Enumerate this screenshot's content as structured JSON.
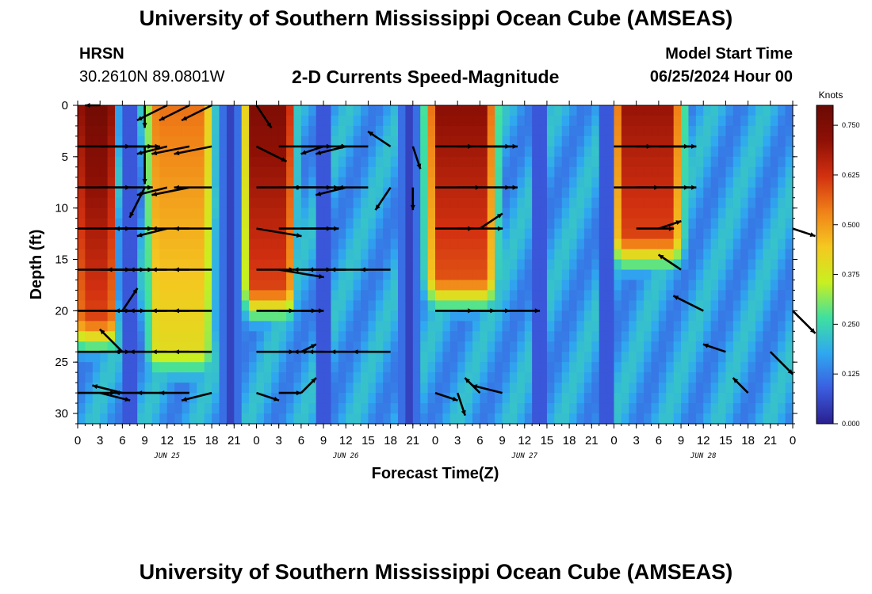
{
  "title": "University of Southern Mississippi Ocean Cube (AMSEAS)",
  "station": {
    "code": "HRSN",
    "coords": "30.2610N  89.0801W"
  },
  "subtitle": "2-D Currents Speed-Magnitude",
  "model_start": {
    "label": "Model Start Time",
    "value": "06/25/2024 Hour 00"
  },
  "footer_title": "University of Southern Mississippi Ocean Cube (AMSEAS)",
  "colors": {
    "arrow": "#000000",
    "colormap": [
      "#2a1f8f",
      "#3b5de0",
      "#2fa8f0",
      "#3fe0a0",
      "#c8f020",
      "#f5c820",
      "#f08018",
      "#d23010",
      "#8e1005",
      "#6a0a04"
    ]
  },
  "chart_data": {
    "type": "heatmap",
    "title": "2-D Currents Speed-Magnitude",
    "xlabel": "Forecast Time(Z)",
    "ylabel": "Depth (ft)",
    "colorbar_label": "Knots",
    "colorbar_ticks": [
      "0.750",
      "0.625",
      "0.500",
      "0.375",
      "0.250",
      "0.125",
      "0.000"
    ],
    "colorbar_range": [
      0,
      0.8
    ],
    "xlim_hours": [
      0,
      96
    ],
    "ylim": [
      0,
      31
    ],
    "y_ticks": [
      "0",
      "5",
      "10",
      "15",
      "20",
      "25",
      "30"
    ],
    "x_tick_labels": [
      "0",
      "3",
      "6",
      "9",
      "12",
      "15",
      "18",
      "21",
      "0",
      "3",
      "6",
      "9",
      "12",
      "15",
      "18",
      "21",
      "0",
      "3",
      "6",
      "9",
      "12",
      "15",
      "18",
      "21",
      "0",
      "3",
      "6",
      "9",
      "12",
      "15",
      "18",
      "21",
      "0"
    ],
    "day_labels": [
      {
        "label": "JUN 25",
        "hour": 12
      },
      {
        "label": "JUN 26",
        "hour": 36
      },
      {
        "label": "JUN 27",
        "hour": 60
      },
      {
        "label": "JUN 28",
        "hour": 84
      }
    ],
    "arrow_depths": [
      0,
      4,
      8,
      12,
      16,
      20,
      24,
      28
    ],
    "speed_peaks": [
      {
        "hour_start": 0,
        "hour_end": 5,
        "max_depth": 21,
        "speed": 0.78
      },
      {
        "hour_start": 9.5,
        "hour_end": 18,
        "max_depth": 24,
        "speed": 0.55
      },
      {
        "hour_start": 22.5,
        "hour_end": 29,
        "max_depth": 18,
        "speed": 0.75
      },
      {
        "hour_start": 47,
        "hour_end": 56,
        "max_depth": 17,
        "speed": 0.72
      },
      {
        "hour_start": 72,
        "hour_end": 81,
        "max_depth": 13,
        "speed": 0.7
      }
    ],
    "slack_hours": [
      7,
      20.5,
      33,
      44.5,
      62,
      71
    ],
    "arrows": [
      {
        "hour": 3,
        "depth": 0,
        "u": -0.2,
        "v": 0.0
      },
      {
        "hour": 9,
        "depth": 0,
        "u": 0.0,
        "v": 0.3
      },
      {
        "hour": 12,
        "depth": 0,
        "u": -0.4,
        "v": 0.2
      },
      {
        "hour": 15,
        "depth": 0,
        "u": -0.4,
        "v": 0.2
      },
      {
        "hour": 18,
        "depth": 0,
        "u": -0.4,
        "v": 0.2
      },
      {
        "hour": 0,
        "depth": 4,
        "u": 0.7,
        "v": 0.0
      },
      {
        "hour": 3,
        "depth": 4,
        "u": 0.7,
        "v": 0.0
      },
      {
        "hour": 6,
        "depth": 4,
        "u": 0.5,
        "v": 0.0
      },
      {
        "hour": 9,
        "depth": 4,
        "u": 0.0,
        "v": 0.5
      },
      {
        "hour": 12,
        "depth": 4,
        "u": -0.4,
        "v": 0.1
      },
      {
        "hour": 15,
        "depth": 4,
        "u": -0.5,
        "v": 0.1
      },
      {
        "hour": 18,
        "depth": 4,
        "u": -0.5,
        "v": 0.1
      },
      {
        "hour": 0,
        "depth": 8,
        "u": 0.7,
        "v": 0.0
      },
      {
        "hour": 3,
        "depth": 8,
        "u": 0.7,
        "v": 0.0
      },
      {
        "hour": 6,
        "depth": 8,
        "u": 0.4,
        "v": 0.0
      },
      {
        "hour": 9,
        "depth": 8,
        "u": -0.2,
        "v": 0.4
      },
      {
        "hour": 12,
        "depth": 8,
        "u": -0.4,
        "v": 0.1
      },
      {
        "hour": 15,
        "depth": 8,
        "u": -0.5,
        "v": 0.1
      },
      {
        "hour": 18,
        "depth": 8,
        "u": -0.5,
        "v": 0.0
      },
      {
        "hour": 0,
        "depth": 12,
        "u": 0.7,
        "v": 0.0
      },
      {
        "hour": 3,
        "depth": 12,
        "u": 0.7,
        "v": 0.0
      },
      {
        "hour": 6,
        "depth": 12,
        "u": 0.4,
        "v": 0.0
      },
      {
        "hour": 9,
        "depth": 12,
        "u": -0.4,
        "v": 0.0
      },
      {
        "hour": 12,
        "depth": 12,
        "u": -0.4,
        "v": 0.1
      },
      {
        "hour": 15,
        "depth": 12,
        "u": -0.5,
        "v": 0.0
      },
      {
        "hour": 18,
        "depth": 12,
        "u": -0.5,
        "v": 0.0
      },
      {
        "hour": 0,
        "depth": 16,
        "u": 0.7,
        "v": 0.0
      },
      {
        "hour": 3,
        "depth": 16,
        "u": 0.7,
        "v": 0.0
      },
      {
        "hour": 6,
        "depth": 16,
        "u": 0.3,
        "v": 0.0
      },
      {
        "hour": 9,
        "depth": 16,
        "u": -0.5,
        "v": 0.0
      },
      {
        "hour": 12,
        "depth": 16,
        "u": -0.5,
        "v": 0.0
      },
      {
        "hour": 15,
        "depth": 16,
        "u": -0.5,
        "v": 0.0
      },
      {
        "hour": 18,
        "depth": 16,
        "u": -0.5,
        "v": 0.0
      },
      {
        "hour": 0,
        "depth": 20,
        "u": 0.7,
        "v": 0.0
      },
      {
        "hour": 3,
        "depth": 20,
        "u": 0.6,
        "v": 0.0
      },
      {
        "hour": 6,
        "depth": 20,
        "u": 0.2,
        "v": -0.3
      },
      {
        "hour": 9,
        "depth": 20,
        "u": -0.4,
        "v": 0.0
      },
      {
        "hour": 12,
        "depth": 20,
        "u": -0.5,
        "v": 0.0
      },
      {
        "hour": 15,
        "depth": 20,
        "u": -0.5,
        "v": 0.0
      },
      {
        "hour": 18,
        "depth": 20,
        "u": -0.5,
        "v": 0.0
      },
      {
        "hour": 0,
        "depth": 24,
        "u": 0.6,
        "v": 0.0
      },
      {
        "hour": 3,
        "depth": 24,
        "u": 0.4,
        "v": 0.0
      },
      {
        "hour": 6,
        "depth": 24,
        "u": -0.3,
        "v": -0.3
      },
      {
        "hour": 9,
        "depth": 24,
        "u": -0.4,
        "v": 0.0
      },
      {
        "hour": 12,
        "depth": 24,
        "u": -0.5,
        "v": 0.0
      },
      {
        "hour": 15,
        "depth": 24,
        "u": -0.5,
        "v": 0.0
      },
      {
        "hour": 18,
        "depth": 24,
        "u": -0.5,
        "v": 0.0
      },
      {
        "hour": 0,
        "depth": 28,
        "u": 0.5,
        "v": 0.0
      },
      {
        "hour": 3,
        "depth": 28,
        "u": 0.4,
        "v": 0.1
      },
      {
        "hour": 6,
        "depth": 28,
        "u": -0.4,
        "v": -0.1
      },
      {
        "hour": 9,
        "depth": 28,
        "u": -0.4,
        "v": 0.0
      },
      {
        "hour": 12,
        "depth": 28,
        "u": -0.4,
        "v": 0.0
      },
      {
        "hour": 15,
        "depth": 28,
        "u": -0.4,
        "v": 0.0
      },
      {
        "hour": 18,
        "depth": 28,
        "u": -0.4,
        "v": 0.1
      },
      {
        "hour": 21,
        "depth": 4,
        "u": 0.0,
        "v": 0.0
      },
      {
        "hour": 24,
        "depth": 4,
        "u": 0.4,
        "v": 0.2
      },
      {
        "hour": 27,
        "depth": 4,
        "u": 0.7,
        "v": 0.0
      },
      {
        "hour": 30,
        "depth": 4,
        "u": 0.6,
        "v": 0.0
      },
      {
        "hour": 24,
        "depth": 0,
        "u": 0.2,
        "v": 0.3
      },
      {
        "hour": 24,
        "depth": 8,
        "u": 0.6,
        "v": 0.0
      },
      {
        "hour": 27,
        "depth": 8,
        "u": 0.7,
        "v": 0.0
      },
      {
        "hour": 30,
        "depth": 8,
        "u": 0.5,
        "v": 0.0
      },
      {
        "hour": 24,
        "depth": 12,
        "u": 0.6,
        "v": 0.1
      },
      {
        "hour": 27,
        "depth": 12,
        "u": 0.7,
        "v": 0.0
      },
      {
        "hour": 30,
        "depth": 12,
        "u": 0.5,
        "v": 0.0
      },
      {
        "hour": 24,
        "depth": 16,
        "u": 0.5,
        "v": 0.0
      },
      {
        "hour": 27,
        "depth": 16,
        "u": 0.6,
        "v": 0.1
      },
      {
        "hour": 30,
        "depth": 16,
        "u": 0.4,
        "v": 0.0
      },
      {
        "hour": 24,
        "depth": 20,
        "u": 0.5,
        "v": 0.0
      },
      {
        "hour": 27,
        "depth": 20,
        "u": 0.5,
        "v": 0.0
      },
      {
        "hour": 30,
        "depth": 20,
        "u": 0.3,
        "v": 0.0
      },
      {
        "hour": 24,
        "depth": 24,
        "u": 0.5,
        "v": 0.0
      },
      {
        "hour": 27,
        "depth": 24,
        "u": 0.4,
        "v": 0.0
      },
      {
        "hour": 30,
        "depth": 24,
        "u": 0.2,
        "v": -0.1
      },
      {
        "hour": 24,
        "depth": 28,
        "u": 0.3,
        "v": 0.1
      },
      {
        "hour": 27,
        "depth": 28,
        "u": 0.3,
        "v": 0.0
      },
      {
        "hour": 30,
        "depth": 28,
        "u": 0.2,
        "v": -0.2
      },
      {
        "hour": 33,
        "depth": 4,
        "u": -0.3,
        "v": 0.1
      },
      {
        "hour": 36,
        "depth": 4,
        "u": -0.4,
        "v": 0.1
      },
      {
        "hour": 39,
        "depth": 4,
        "u": -0.4,
        "v": 0.0
      },
      {
        "hour": 42,
        "depth": 4,
        "u": -0.3,
        "v": -0.2
      },
      {
        "hour": 45,
        "depth": 4,
        "u": 0.1,
        "v": 0.3
      },
      {
        "hour": 33,
        "depth": 8,
        "u": -0.4,
        "v": 0.0
      },
      {
        "hour": 36,
        "depth": 8,
        "u": -0.4,
        "v": 0.1
      },
      {
        "hour": 39,
        "depth": 8,
        "u": -0.4,
        "v": 0.0
      },
      {
        "hour": 42,
        "depth": 8,
        "u": -0.2,
        "v": 0.3
      },
      {
        "hour": 45,
        "depth": 8,
        "u": 0.0,
        "v": 0.3
      },
      {
        "hour": 33,
        "depth": 16,
        "u": -0.4,
        "v": 0.0
      },
      {
        "hour": 36,
        "depth": 16,
        "u": -0.5,
        "v": 0.0
      },
      {
        "hour": 39,
        "depth": 16,
        "u": -0.5,
        "v": 0.0
      },
      {
        "hour": 42,
        "depth": 16,
        "u": -0.4,
        "v": 0.0
      },
      {
        "hour": 33,
        "depth": 24,
        "u": -0.4,
        "v": 0.0
      },
      {
        "hour": 36,
        "depth": 24,
        "u": -0.5,
        "v": 0.0
      },
      {
        "hour": 39,
        "depth": 24,
        "u": -0.5,
        "v": 0.0
      },
      {
        "hour": 42,
        "depth": 24,
        "u": -0.5,
        "v": 0.0
      },
      {
        "hour": 48,
        "depth": 4,
        "u": 0.5,
        "v": 0.0
      },
      {
        "hour": 51,
        "depth": 4,
        "u": 0.7,
        "v": 0.0
      },
      {
        "hour": 54,
        "depth": 4,
        "u": 0.5,
        "v": 0.0
      },
      {
        "hour": 48,
        "depth": 8,
        "u": 0.6,
        "v": 0.0
      },
      {
        "hour": 51,
        "depth": 8,
        "u": 0.7,
        "v": 0.0
      },
      {
        "hour": 54,
        "depth": 8,
        "u": 0.5,
        "v": 0.0
      },
      {
        "hour": 48,
        "depth": 12,
        "u": 0.5,
        "v": 0.0
      },
      {
        "hour": 51,
        "depth": 12,
        "u": 0.6,
        "v": 0.0
      },
      {
        "hour": 54,
        "depth": 12,
        "u": 0.3,
        "v": -0.2
      },
      {
        "hour": 48,
        "depth": 20,
        "u": 0.5,
        "v": 0.0
      },
      {
        "hour": 51,
        "depth": 20,
        "u": 0.5,
        "v": 0.0
      },
      {
        "hour": 54,
        "depth": 20,
        "u": 0.4,
        "v": 0.0
      },
      {
        "hour": 57,
        "depth": 20,
        "u": 0.5,
        "v": 0.0
      },
      {
        "hour": 48,
        "depth": 28,
        "u": 0.3,
        "v": 0.1
      },
      {
        "hour": 51,
        "depth": 28,
        "u": 0.1,
        "v": 0.3
      },
      {
        "hour": 54,
        "depth": 28,
        "u": -0.2,
        "v": -0.2
      },
      {
        "hour": 57,
        "depth": 28,
        "u": -0.4,
        "v": -0.1
      },
      {
        "hour": 72,
        "depth": 4,
        "u": 0.5,
        "v": 0.0
      },
      {
        "hour": 75,
        "depth": 4,
        "u": 0.7,
        "v": 0.0
      },
      {
        "hour": 78,
        "depth": 4,
        "u": 0.5,
        "v": 0.0
      },
      {
        "hour": 72,
        "depth": 8,
        "u": 0.6,
        "v": 0.0
      },
      {
        "hour": 75,
        "depth": 8,
        "u": 0.7,
        "v": 0.0
      },
      {
        "hour": 78,
        "depth": 8,
        "u": 0.5,
        "v": 0.0
      },
      {
        "hour": 75,
        "depth": 12,
        "u": 0.5,
        "v": 0.0
      },
      {
        "hour": 78,
        "depth": 12,
        "u": 0.3,
        "v": -0.1
      },
      {
        "hour": 81,
        "depth": 16,
        "u": -0.3,
        "v": -0.2
      },
      {
        "hour": 84,
        "depth": 20,
        "u": -0.4,
        "v": -0.2
      },
      {
        "hour": 87,
        "depth": 24,
        "u": -0.3,
        "v": -0.1
      },
      {
        "hour": 90,
        "depth": 28,
        "u": -0.2,
        "v": -0.2
      },
      {
        "hour": 93,
        "depth": 24,
        "u": 0.3,
        "v": 0.3
      },
      {
        "hour": 96,
        "depth": 12,
        "u": 0.3,
        "v": 0.1
      },
      {
        "hour": 96,
        "depth": 20,
        "u": 0.3,
        "v": 0.3
      }
    ]
  }
}
